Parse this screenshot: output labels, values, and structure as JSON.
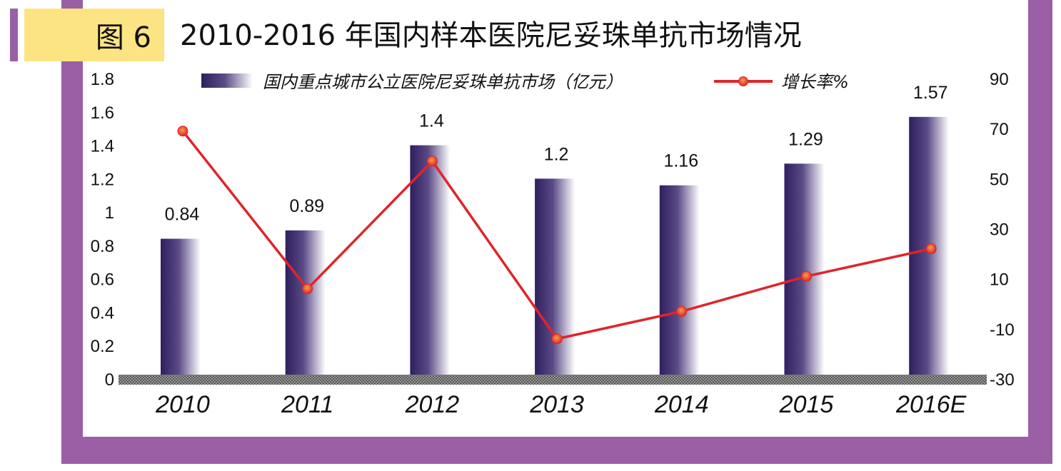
{
  "figure": {
    "tag": "图 6",
    "title": "2010-2016 年国内样本医院尼妥珠单抗市场情况"
  },
  "colors": {
    "frame": "#9b5fa5",
    "tag_bg": "#fce483",
    "bar_dark": "#2e1f5e",
    "line": "#e0242a",
    "marker_fill": "#f07a2a"
  },
  "chart_data": {
    "type": "bar",
    "title": "",
    "categories": [
      "2010",
      "2011",
      "2012",
      "2013",
      "2014",
      "2015",
      "2016E"
    ],
    "series": [
      {
        "name": "国内重点城市公立医院尼妥珠单抗市场（亿元）",
        "type": "bar",
        "axis": "left",
        "values": [
          0.84,
          0.89,
          1.4,
          1.2,
          1.16,
          1.29,
          1.57
        ],
        "data_labels": [
          "0.84",
          "0.89",
          "1.4",
          "1.2",
          "1.16",
          "1.29",
          "1.57"
        ]
      },
      {
        "name": "增长率%",
        "type": "line",
        "axis": "right",
        "values": [
          69,
          6,
          57,
          -14,
          -3,
          11,
          22
        ]
      }
    ],
    "y_left": {
      "range": [
        0,
        1.8
      ],
      "ticks": [
        0,
        0.2,
        0.4,
        0.6,
        0.8,
        1,
        1.2,
        1.4,
        1.6,
        1.8
      ],
      "tick_labels": [
        "0",
        "0.2",
        "0.4",
        "0.6",
        "0.8",
        "1",
        "1.2",
        "1.4",
        "1.6",
        "1.8"
      ]
    },
    "y_right": {
      "range": [
        -30,
        90
      ],
      "ticks": [
        -30,
        -10,
        10,
        30,
        50,
        70,
        90
      ],
      "tick_labels": [
        "-30",
        "-10",
        "10",
        "30",
        "50",
        "70",
        "90"
      ]
    },
    "grid": false,
    "legend": "top"
  }
}
